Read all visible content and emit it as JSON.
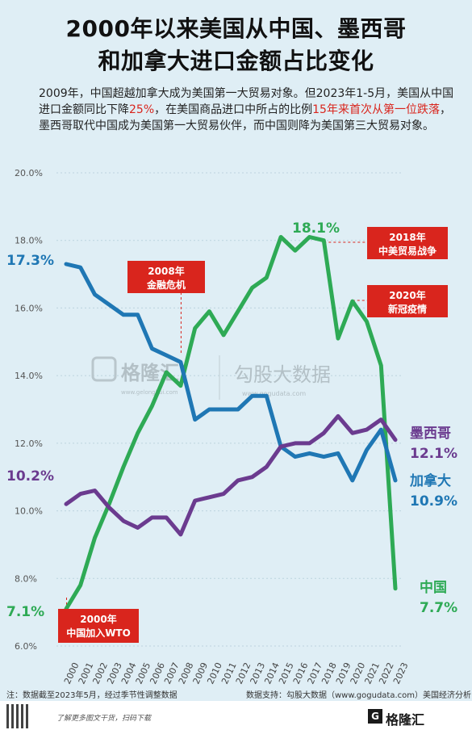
{
  "header": {
    "title_line1": "2000年以来美国从中国、墨西哥",
    "title_line2": "和加拿大进口金额占比变化"
  },
  "description": {
    "part1": "2009年，中国超越加拿大成为美国第一大贸易对象。但2023年1-5月，美国从中国进口金额同比下降",
    "highlight1": "25%",
    "part2": "，在美国商品进口中所占的比例",
    "highlight2": "15年来首次从第一位跌落",
    "part3": "，墨西哥取代中国成为美国第一大贸易伙伴，而中国则降为美国第三大贸易对象。"
  },
  "watermark": {
    "text1": "格隆汇",
    "sub1": "www.gelonghui.com",
    "text2": "勾股大数据",
    "sub2": "www.gogudata.com"
  },
  "chart_data": {
    "type": "line",
    "x": [
      "2000",
      "2001",
      "2002",
      "2003",
      "2004",
      "2005",
      "2006",
      "2007",
      "2008",
      "2009",
      "2010",
      "2011",
      "2012",
      "2013",
      "2014",
      "2015",
      "2016",
      "2017",
      "2018",
      "2019",
      "2020",
      "2021",
      "2022",
      "2023"
    ],
    "ylim": [
      6,
      20
    ],
    "yticks": [
      "6.0%",
      "8.0%",
      "10.0%",
      "12.0%",
      "14.0%",
      "16.0%",
      "18.0%",
      "20.0%"
    ],
    "series": [
      {
        "name": "中国",
        "color": "#2eaa55",
        "values": [
          7.1,
          7.8,
          9.2,
          10.2,
          11.3,
          12.3,
          13.1,
          14.1,
          13.7,
          15.4,
          15.9,
          15.2,
          15.9,
          16.6,
          16.9,
          18.1,
          17.7,
          18.1,
          18.0,
          15.1,
          16.2,
          15.6,
          14.3,
          7.7
        ]
      },
      {
        "name": "加拿大",
        "color": "#1f77b4",
        "values": [
          17.3,
          17.2,
          16.4,
          16.1,
          15.8,
          15.8,
          14.8,
          14.6,
          14.4,
          12.7,
          13.0,
          13.0,
          13.0,
          13.4,
          13.4,
          11.9,
          11.6,
          11.7,
          11.6,
          11.7,
          10.9,
          11.8,
          12.4,
          10.9
        ]
      },
      {
        "name": "墨西哥",
        "color": "#6b3b8f",
        "values": [
          10.2,
          10.5,
          10.6,
          10.1,
          9.7,
          9.5,
          9.8,
          9.8,
          9.3,
          10.3,
          10.4,
          10.5,
          10.9,
          11.0,
          11.3,
          11.9,
          12.0,
          12.0,
          12.3,
          12.8,
          12.3,
          12.4,
          12.7,
          12.1
        ]
      }
    ],
    "end_labels": {
      "china_start": "7.1%",
      "canada_start": "17.3%",
      "mexico_start": "10.2%",
      "china_peak": "18.1%",
      "mexico_name": "墨西哥",
      "mexico_value": "12.1%",
      "canada_name": "加拿大",
      "canada_value": "10.9%",
      "china_name": "中国",
      "china_value": "7.7%"
    },
    "annotations": [
      {
        "year": "2000",
        "line1": "2000年",
        "line2": "中国加入WTO"
      },
      {
        "year": "2008",
        "line1": "2008年",
        "line2": "金融危机"
      },
      {
        "year": "2018",
        "line1": "2018年",
        "line2": "中美贸易战争"
      },
      {
        "year": "2020",
        "line1": "2020年",
        "line2": "新冠疫情"
      }
    ]
  },
  "footer": {
    "note": "注：数据截至2023年5月，经过季节性调整数据",
    "source": "数据支持：勾股大数据（www.gogudata.com）美国经济分析局",
    "qr_text": "了解更多图文干货，扫码下载",
    "brand": "格隆汇"
  }
}
